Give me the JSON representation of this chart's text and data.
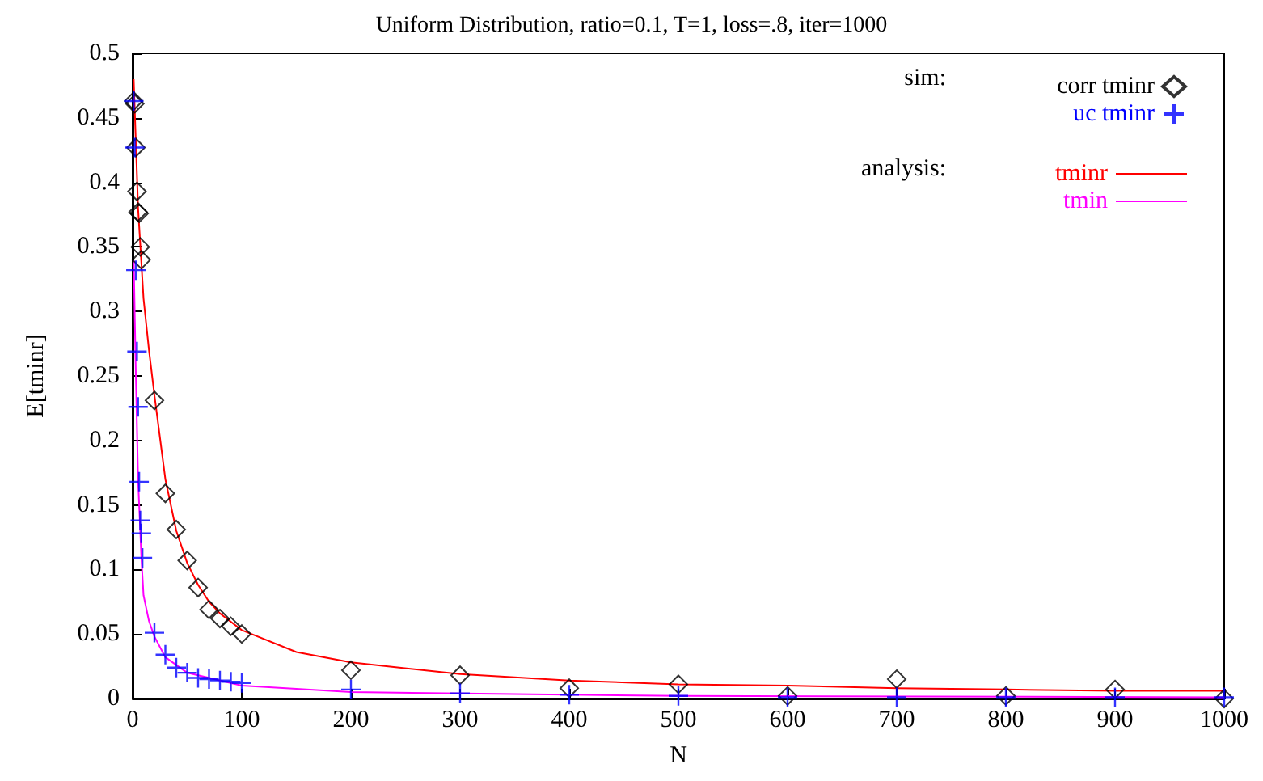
{
  "chart_data": {
    "type": "scatter",
    "title": "Uniform Distribution, ratio=0.1, T=1, loss=.8, iter=1000",
    "xlabel": "N",
    "ylabel": "E[tminr]",
    "xlim": [
      0,
      1000
    ],
    "xticks": [
      0,
      100,
      200,
      300,
      400,
      500,
      600,
      700,
      800,
      900,
      1000
    ],
    "ylim": [
      0,
      0.5
    ],
    "yticks": [
      0,
      0.05,
      0.1,
      0.15,
      0.2,
      0.25,
      0.3,
      0.35,
      0.4,
      0.45,
      0.5
    ],
    "grid": false,
    "legend": "top right",
    "annotations": [
      "sim:",
      "analysis:"
    ],
    "series": [
      {
        "name": "corr tminr",
        "marker": "diamond",
        "color": "#000000",
        "x": [
          1,
          2,
          3,
          4,
          5,
          6,
          7,
          8,
          20,
          30,
          40,
          50,
          60,
          70,
          80,
          90,
          100,
          200,
          300,
          400,
          500,
          600,
          700,
          800,
          900,
          1000
        ],
        "values": [
          0.463,
          0.461,
          0.427,
          0.393,
          0.377,
          0.376,
          0.35,
          0.34,
          0.231,
          0.159,
          0.131,
          0.107,
          0.086,
          0.069,
          0.062,
          0.056,
          0.05,
          0.022,
          0.018,
          0.008,
          0.011,
          0.002,
          0.015,
          0.002,
          0.007,
          0
        ]
      },
      {
        "name": "uc tminr",
        "marker": "cross",
        "color": "#0000ff",
        "x": [
          1,
          2,
          3,
          4,
          5,
          6,
          7,
          8,
          9,
          20,
          30,
          40,
          50,
          60,
          70,
          80,
          90,
          100,
          200,
          300,
          400,
          500,
          600,
          700,
          800,
          900,
          1000
        ],
        "values": [
          0.463,
          0.427,
          0.332,
          0.269,
          0.226,
          0.168,
          0.138,
          0.128,
          0.109,
          0.051,
          0.034,
          0.024,
          0.02,
          0.016,
          0.015,
          0.014,
          0.013,
          0.012,
          0.007,
          0.004,
          0.003,
          0.002,
          0.001,
          0.001,
          0.001,
          0.001,
          0.001
        ]
      },
      {
        "name": "tminr",
        "type": "line",
        "marker": "none",
        "color": "#ff0000",
        "x": [
          1,
          3,
          5,
          10,
          15,
          20,
          30,
          40,
          50,
          60,
          70,
          80,
          100,
          150,
          200,
          300,
          400,
          500,
          600,
          700,
          800,
          900,
          1000
        ],
        "values": [
          0.48,
          0.43,
          0.38,
          0.31,
          0.27,
          0.235,
          0.17,
          0.13,
          0.105,
          0.088,
          0.075,
          0.066,
          0.053,
          0.036,
          0.028,
          0.019,
          0.014,
          0.011,
          0.01,
          0.008,
          0.007,
          0.006,
          0.006
        ]
      },
      {
        "name": "tmin",
        "type": "line",
        "marker": "none",
        "color": "#ff00ff",
        "x": [
          1,
          3,
          5,
          8,
          10,
          15,
          20,
          30,
          50,
          100,
          200,
          500,
          1000
        ],
        "values": [
          0.34,
          0.25,
          0.17,
          0.11,
          0.08,
          0.06,
          0.048,
          0.032,
          0.02,
          0.01,
          0.005,
          0.002,
          0.001
        ]
      }
    ]
  }
}
